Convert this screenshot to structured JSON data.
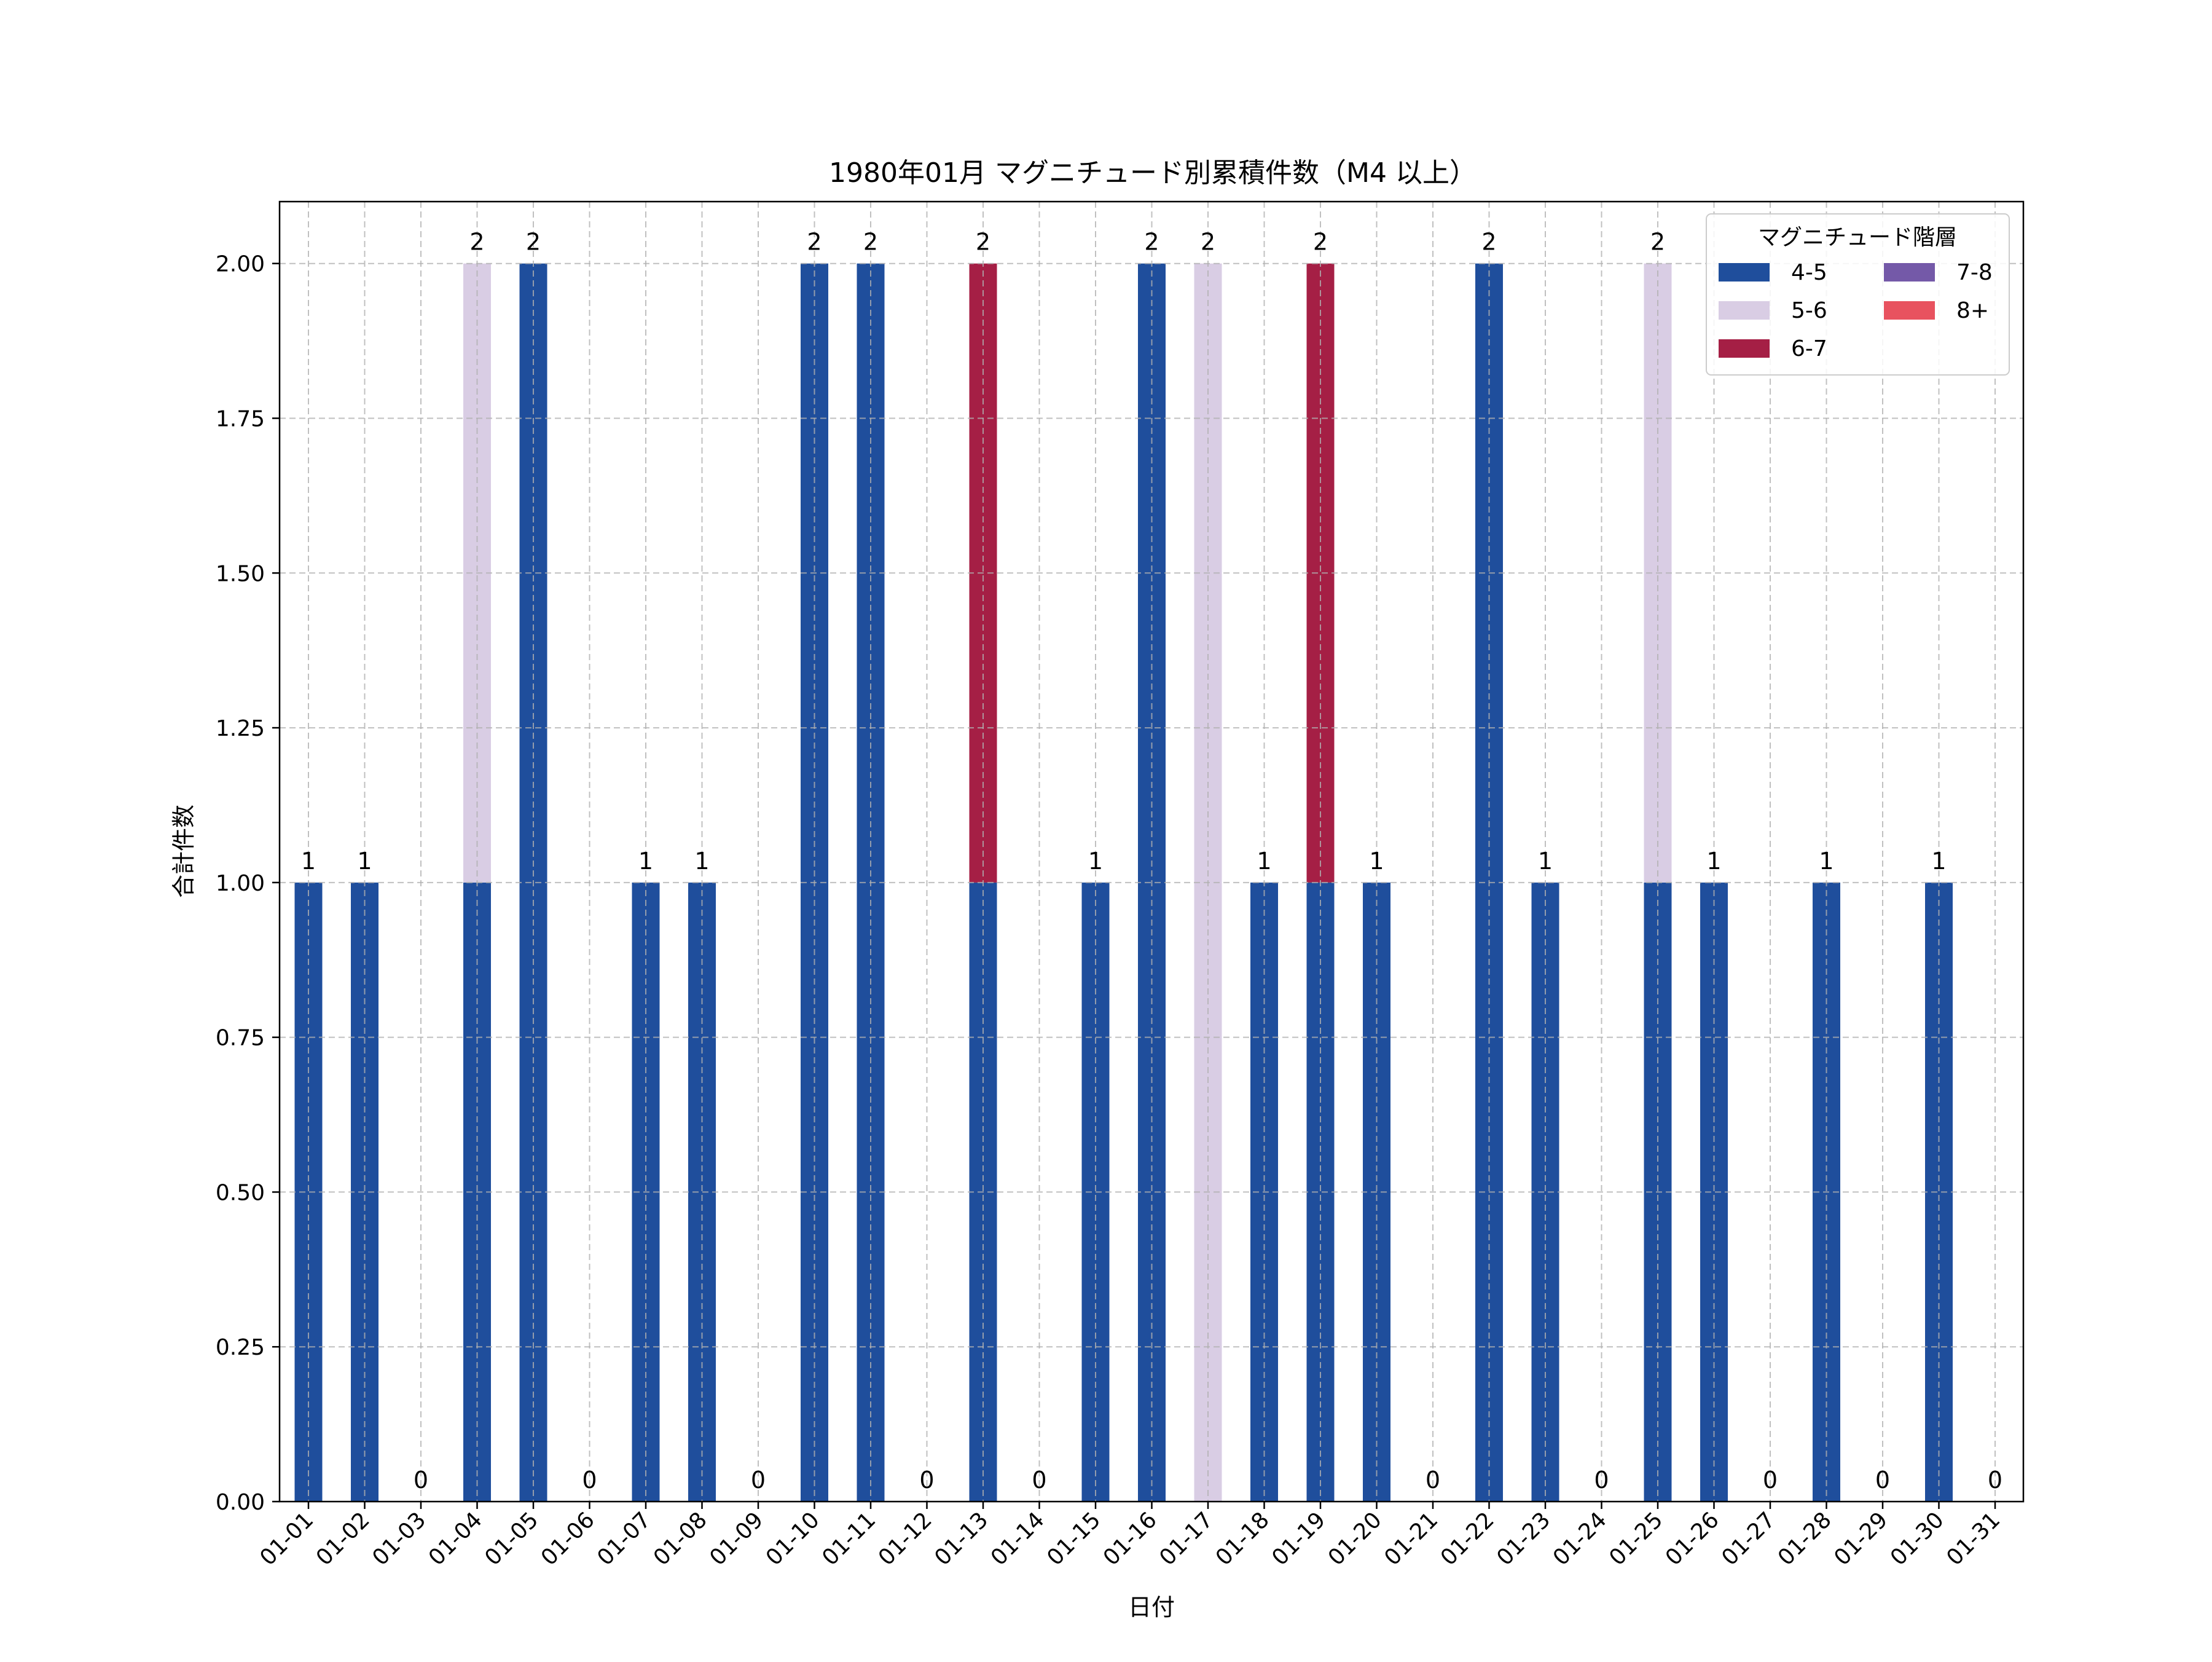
{
  "chart_data": {
    "type": "bar",
    "stacked": true,
    "title": "1980年01月 マグニチュード別累積件数（M4 以上）",
    "xlabel": "日付",
    "ylabel": "合計件数",
    "ylim": [
      0,
      2.1
    ],
    "yticks": [
      "0.00",
      "0.25",
      "0.50",
      "0.75",
      "1.00",
      "1.25",
      "1.50",
      "1.75",
      "2.00"
    ],
    "grid": true,
    "legend": {
      "title": "マグニチュード階層",
      "placement": "top-right",
      "columns": 2
    },
    "categories": [
      "01-01",
      "01-02",
      "01-03",
      "01-04",
      "01-05",
      "01-06",
      "01-07",
      "01-08",
      "01-09",
      "01-10",
      "01-11",
      "01-12",
      "01-13",
      "01-14",
      "01-15",
      "01-16",
      "01-17",
      "01-18",
      "01-19",
      "01-20",
      "01-21",
      "01-22",
      "01-23",
      "01-24",
      "01-25",
      "01-26",
      "01-27",
      "01-28",
      "01-29",
      "01-30",
      "01-31"
    ],
    "series": [
      {
        "name": "4-5",
        "color": "#1f4e9c",
        "values": [
          1,
          1,
          0,
          1,
          2,
          0,
          1,
          1,
          0,
          2,
          2,
          0,
          1,
          0,
          1,
          2,
          0,
          1,
          1,
          1,
          0,
          2,
          1,
          0,
          1,
          1,
          0,
          1,
          0,
          1,
          0
        ]
      },
      {
        "name": "5-6",
        "color": "#d9cde4",
        "values": [
          0,
          0,
          0,
          1,
          0,
          0,
          0,
          0,
          0,
          0,
          0,
          0,
          0,
          0,
          0,
          0,
          2,
          0,
          0,
          0,
          0,
          0,
          0,
          0,
          1,
          0,
          0,
          0,
          0,
          0,
          0
        ]
      },
      {
        "name": "6-7",
        "color": "#a51f45",
        "values": [
          0,
          0,
          0,
          0,
          0,
          0,
          0,
          0,
          0,
          0,
          0,
          0,
          1,
          0,
          0,
          0,
          0,
          0,
          1,
          0,
          0,
          0,
          0,
          0,
          0,
          0,
          0,
          0,
          0,
          0,
          0
        ]
      },
      {
        "name": "7-8",
        "color": "#7459a8",
        "values": [
          0,
          0,
          0,
          0,
          0,
          0,
          0,
          0,
          0,
          0,
          0,
          0,
          0,
          0,
          0,
          0,
          0,
          0,
          0,
          0,
          0,
          0,
          0,
          0,
          0,
          0,
          0,
          0,
          0,
          0,
          0
        ]
      },
      {
        "name": "8+",
        "color": "#e8525f",
        "values": [
          0,
          0,
          0,
          0,
          0,
          0,
          0,
          0,
          0,
          0,
          0,
          0,
          0,
          0,
          0,
          0,
          0,
          0,
          0,
          0,
          0,
          0,
          0,
          0,
          0,
          0,
          0,
          0,
          0,
          0,
          0
        ]
      }
    ],
    "totals": [
      "1",
      "1",
      "0",
      "2",
      "2",
      "0",
      "1",
      "1",
      "0",
      "2",
      "2",
      "0",
      "2",
      "0",
      "1",
      "2",
      "2",
      "1",
      "2",
      "1",
      "0",
      "2",
      "1",
      "0",
      "2",
      "1",
      "0",
      "1",
      "0",
      "1",
      "0"
    ]
  }
}
